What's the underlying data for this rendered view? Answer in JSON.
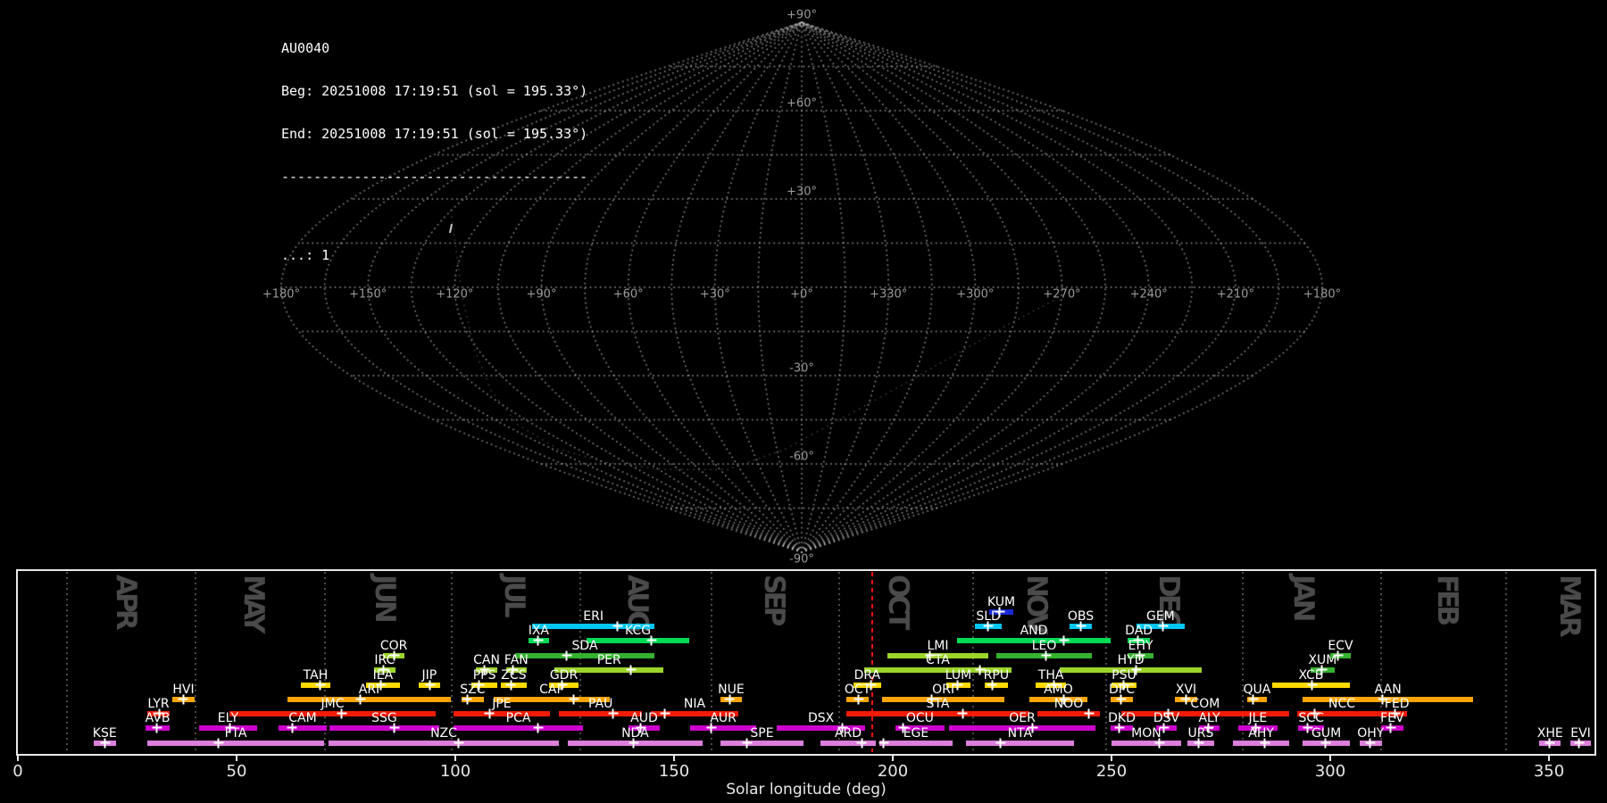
{
  "header": {
    "station": "AU0040",
    "beg_line": "Beg: 20251008 17:19:51 (sol = 195.33°)",
    "end_line": "End: 20251008 17:19:51 (sol = 195.33°)",
    "separator": "--------------------------------------",
    "count_line": "...: 1"
  },
  "palette": {
    "bl": "#1b2ad4",
    "cy": "#00c6f5",
    "sg": "#00db55",
    "gr": "#35b22f",
    "yg": "#9cd42a",
    "ye": "#ffd900",
    "or": "#ffa508",
    "re": "#f21b07",
    "ma": "#cc00cc",
    "vi": "#dc7edc"
  },
  "chart_data": [
    {
      "type": "scatter",
      "title": "radiant sky map, sinusoidal projection, sun-centered ecliptic coordinates",
      "grid": "dotted, parallels and meridians every 15 deg, labels every 30 deg",
      "lat_labels": [
        {
          "text": "+90°",
          "lat": 90
        },
        {
          "text": "+60°",
          "lat": 60
        },
        {
          "text": "+30°",
          "lat": 30
        },
        {
          "text": "-30°",
          "lat": -30
        },
        {
          "text": "-60°",
          "lat": -60
        },
        {
          "text": "-90°",
          "lat": -90
        }
      ],
      "lon_labels": [
        {
          "text": "+180°",
          "lon": 180
        },
        {
          "text": "+150°",
          "lon": 150
        },
        {
          "text": "+120°",
          "lon": 120
        },
        {
          "text": "+90°",
          "lon": 90
        },
        {
          "text": "+60°",
          "lon": 60
        },
        {
          "text": "+30°",
          "lon": 30
        },
        {
          "text": "+0°",
          "lon": 0
        },
        {
          "text": "+330°",
          "lon": -30
        },
        {
          "text": "+300°",
          "lon": -60
        },
        {
          "text": "+270°",
          "lon": -90
        },
        {
          "text": "+240°",
          "lon": -120
        },
        {
          "text": "+210°",
          "lon": -150
        },
        {
          "text": "+180°",
          "lon": -180
        }
      ],
      "radiant_count": 1,
      "radiant": {
        "lon": 129,
        "lat": 20
      },
      "reference_curve": [
        [
          134.9,
          25.9
        ],
        [
          119.3,
          6.1
        ],
        [
          117.4,
          -6.1
        ],
        [
          121.4,
          -21.4
        ],
        [
          131.3,
          -35.1
        ],
        [
          143.2,
          -46.7
        ],
        [
          146.7,
          -54.9
        ],
        [
          132.6,
          -59.5
        ],
        [
          100.3,
          -61.9
        ],
        [
          54.4,
          -61.9
        ],
        [
          9.7,
          -54.9
        ],
        [
          -20.2,
          -44.2
        ],
        [
          -41.4,
          -33.3
        ],
        [
          -57.6,
          -22.9
        ],
        [
          -73.4,
          -12.5
        ],
        [
          -88.8,
          -3.7
        ]
      ]
    },
    {
      "type": "bar",
      "title": "meteor shower activity periods",
      "xlabel": "Solar longitude (deg)",
      "xlim": [
        0,
        360.4
      ],
      "xticks": [
        0,
        50,
        100,
        150,
        200,
        250,
        300,
        350
      ],
      "current_sol": 195.33,
      "legend_position": "none",
      "grid": "dotted vertical lines at month boundaries",
      "months": [
        {
          "label": "APR",
          "start": 11.3,
          "center": 24.5
        },
        {
          "label": "MAY",
          "start": 40.6,
          "center": 53.7
        },
        {
          "label": "JUN",
          "start": 70.3,
          "center": 83.7
        },
        {
          "label": "JUL",
          "start": 99.2,
          "center": 113.3
        },
        {
          "label": "AUG",
          "start": 128.6,
          "center": 141.4
        },
        {
          "label": "SEP",
          "start": 158.6,
          "center": 172.7
        },
        {
          "label": "OCT",
          "start": 187.7,
          "center": 201.0
        },
        {
          "label": "NOV",
          "start": 218.3,
          "center": 232.7
        },
        {
          "label": "DEC",
          "start": 248.7,
          "center": 262.9
        },
        {
          "label": "JAN",
          "start": 280.0,
          "center": 293.7
        },
        {
          "label": "FEB",
          "start": 311.6,
          "center": 326.5
        },
        {
          "label": "MAR",
          "start": 340.2,
          "center": 354.5
        }
      ],
      "showers": [
        {
          "code": "KUM",
          "row": 0,
          "c": "bl",
          "start": 222.0,
          "end": 227.6,
          "peak": 224.5
        },
        {
          "code": "ERI",
          "row": 1,
          "c": "cy",
          "start": 117.6,
          "end": 145.5,
          "peak": 137.1
        },
        {
          "code": "SLD",
          "row": 1,
          "c": "cy",
          "start": 218.8,
          "end": 224.9,
          "peak": 221.8
        },
        {
          "code": "OBS",
          "row": 1,
          "c": "cy",
          "start": 240.4,
          "end": 245.5,
          "peak": 243.1
        },
        {
          "code": "GEM",
          "row": 1,
          "c": "cy",
          "start": 255.7,
          "end": 266.7,
          "peak": 261.8
        },
        {
          "code": "IXA",
          "row": 2,
          "c": "sg",
          "start": 116.7,
          "end": 121.4,
          "peak": 119.0
        },
        {
          "code": "KCG",
          "row": 2,
          "c": "sg",
          "start": 130.0,
          "end": 153.5,
          "peak": 144.9
        },
        {
          "code": "AND",
          "row": 2,
          "c": "sg",
          "start": 214.7,
          "end": 249.8,
          "peak": 239.2
        },
        {
          "code": "DAD",
          "row": 2,
          "c": "sg",
          "start": 253.7,
          "end": 258.8,
          "peak": 256.1
        },
        {
          "code": "COR",
          "row": 3,
          "c": "yg",
          "start": 83.5,
          "end": 88.4,
          "peak": 86.1
        },
        {
          "code": "SDA",
          "row": 3,
          "c": "gr",
          "start": 113.7,
          "end": 145.5,
          "peak": 125.5
        },
        {
          "code": "LMI",
          "row": 3,
          "c": "yg",
          "start": 198.8,
          "end": 221.8,
          "peak": 208.6
        },
        {
          "code": "LEO",
          "row": 3,
          "c": "gr",
          "start": 223.7,
          "end": 245.5,
          "peak": 235.1
        },
        {
          "code": "EHY",
          "row": 3,
          "c": "gr",
          "start": 253.7,
          "end": 259.6,
          "peak": 256.5
        },
        {
          "code": "ECV",
          "row": 3,
          "c": "gr",
          "start": 300.0,
          "end": 304.7,
          "peak": 301.8
        },
        {
          "code": "IRC",
          "row": 4,
          "c": "yg",
          "start": 81.4,
          "end": 86.3,
          "peak": 83.7
        },
        {
          "code": "CAN",
          "row": 4,
          "c": "yg",
          "start": 104.7,
          "end": 109.6,
          "peak": 106.7
        },
        {
          "code": "FAN",
          "row": 4,
          "c": "yg",
          "start": 111.6,
          "end": 116.3,
          "peak": 113.3
        },
        {
          "code": "PER",
          "row": 4,
          "c": "yg",
          "start": 122.7,
          "end": 147.6,
          "peak": 140.2
        },
        {
          "code": "CTA",
          "row": 4,
          "c": "yg",
          "start": 193.5,
          "end": 227.1,
          "peak": 220.0
        },
        {
          "code": "HYD",
          "row": 4,
          "c": "yg",
          "start": 238.2,
          "end": 270.6,
          "peak": 255.7
        },
        {
          "code": "XUM",
          "row": 4,
          "c": "gr",
          "start": 295.5,
          "end": 301.0,
          "peak": 298.2
        },
        {
          "code": "TAH",
          "row": 5,
          "c": "ye",
          "start": 64.7,
          "end": 71.4,
          "peak": 69.2
        },
        {
          "code": "IEA",
          "row": 5,
          "c": "ye",
          "start": 79.6,
          "end": 87.3,
          "peak": 83.1
        },
        {
          "code": "JIP",
          "row": 5,
          "c": "ye",
          "start": 91.6,
          "end": 96.5,
          "peak": 94.3
        },
        {
          "code": "PPS",
          "row": 5,
          "c": "ye",
          "start": 103.7,
          "end": 109.6,
          "peak": 105.5
        },
        {
          "code": "ZCS",
          "row": 5,
          "c": "ye",
          "start": 110.4,
          "end": 116.3,
          "peak": 112.7
        },
        {
          "code": "GDR",
          "row": 5,
          "c": "ye",
          "start": 121.4,
          "end": 128.2,
          "peak": 124.5
        },
        {
          "code": "DRA",
          "row": 5,
          "c": "ye",
          "start": 191.0,
          "end": 197.3,
          "peak": 195.1
        },
        {
          "code": "LUM",
          "row": 5,
          "c": "ye",
          "start": 212.2,
          "end": 217.8,
          "peak": 214.9
        },
        {
          "code": "RPU",
          "row": 5,
          "c": "ye",
          "start": 221.0,
          "end": 226.3,
          "peak": 222.7
        },
        {
          "code": "THA",
          "row": 5,
          "c": "ye",
          "start": 232.7,
          "end": 239.6,
          "peak": 236.9
        },
        {
          "code": "PSU",
          "row": 5,
          "c": "ye",
          "start": 250.0,
          "end": 255.7,
          "peak": 252.7
        },
        {
          "code": "XCB",
          "row": 5,
          "c": "ye",
          "start": 286.7,
          "end": 304.5,
          "peak": 295.9
        },
        {
          "code": "HVI",
          "row": 6,
          "c": "or",
          "start": 35.3,
          "end": 40.4,
          "peak": 37.8
        },
        {
          "code": "ARI",
          "row": 6,
          "c": "or",
          "start": 61.6,
          "end": 99.0,
          "peak": 78.4
        },
        {
          "code": "SZC",
          "row": 6,
          "c": "or",
          "start": 101.4,
          "end": 106.5,
          "peak": 102.7
        },
        {
          "code": "CAP",
          "row": 6,
          "c": "or",
          "start": 108.8,
          "end": 135.3,
          "peak": 127.1
        },
        {
          "code": "NUE",
          "row": 6,
          "c": "or",
          "start": 160.6,
          "end": 165.5,
          "peak": 162.7
        },
        {
          "code": "OCT",
          "row": 6,
          "c": "or",
          "start": 189.4,
          "end": 194.5,
          "peak": 192.2
        },
        {
          "code": "ORI",
          "row": 6,
          "c": "or",
          "start": 197.6,
          "end": 225.5,
          "peak": 209.0
        },
        {
          "code": "AMO",
          "row": 6,
          "c": "or",
          "start": 231.2,
          "end": 244.5,
          "peak": 239.2
        },
        {
          "code": "DPC",
          "row": 6,
          "c": "or",
          "start": 249.8,
          "end": 254.9,
          "peak": 252.2
        },
        {
          "code": "XVI",
          "row": 6,
          "c": "or",
          "start": 264.5,
          "end": 269.6,
          "peak": 267.0
        },
        {
          "code": "QUA",
          "row": 6,
          "c": "or",
          "start": 281.0,
          "end": 285.5,
          "peak": 282.4
        },
        {
          "code": "AAN",
          "row": 6,
          "c": "or",
          "start": 293.7,
          "end": 332.7,
          "peak": 312.0
        },
        {
          "code": "LYR",
          "row": 7,
          "c": "re",
          "start": 29.6,
          "end": 34.7,
          "peak": 32.4
        },
        {
          "code": "JMC",
          "row": 7,
          "c": "re",
          "start": 48.4,
          "end": 95.5,
          "peak": 74.1
        },
        {
          "code": "JPE",
          "row": 7,
          "c": "re",
          "start": 99.6,
          "end": 121.6,
          "peak": 107.8
        },
        {
          "code": "PAU",
          "row": 7,
          "c": "re",
          "start": 123.7,
          "end": 142.7,
          "peak": 136.1
        },
        {
          "code": "NIA",
          "row": 7,
          "c": "re",
          "start": 144.7,
          "end": 164.7,
          "peak": 148.0
        },
        {
          "code": "STA",
          "row": 7,
          "c": "re",
          "start": 189.4,
          "end": 231.2,
          "peak": 216.0
        },
        {
          "code": "NOO",
          "row": 7,
          "c": "re",
          "start": 233.1,
          "end": 247.3,
          "peak": 244.9
        },
        {
          "code": "COM",
          "row": 7,
          "c": "re",
          "start": 252.2,
          "end": 290.6,
          "peak": 263.1
        },
        {
          "code": "NCC",
          "row": 7,
          "c": "re",
          "start": 292.4,
          "end": 312.9,
          "peak": 296.5
        },
        {
          "code": "FED",
          "row": 7,
          "c": "re",
          "start": 312.9,
          "end": 317.6,
          "peak": 314.9
        },
        {
          "code": "AVB",
          "row": 8,
          "c": "ma",
          "start": 29.2,
          "end": 34.7,
          "peak": 31.8
        },
        {
          "code": "ELY",
          "row": 8,
          "c": "ma",
          "start": 41.4,
          "end": 54.7,
          "peak": 48.6
        },
        {
          "code": "CAM",
          "row": 8,
          "c": "ma",
          "start": 59.6,
          "end": 70.6,
          "peak": 62.7
        },
        {
          "code": "SSG",
          "row": 8,
          "c": "ma",
          "start": 71.2,
          "end": 96.3,
          "peak": 86.1
        },
        {
          "code": "PCA",
          "row": 8,
          "c": "ma",
          "start": 99.6,
          "end": 129.2,
          "peak": 119.0
        },
        {
          "code": "AUD",
          "row": 8,
          "c": "ma",
          "start": 139.6,
          "end": 146.7,
          "peak": 142.4
        },
        {
          "code": "AUR",
          "row": 8,
          "c": "ma",
          "start": 153.7,
          "end": 168.8,
          "peak": 158.6
        },
        {
          "code": "DSX",
          "row": 8,
          "c": "ma",
          "start": 173.5,
          "end": 193.7,
          "peak": 188.6
        },
        {
          "code": "OCU",
          "row": 8,
          "c": "ma",
          "start": 200.6,
          "end": 211.8,
          "peak": 202.4
        },
        {
          "code": "OER",
          "row": 8,
          "c": "ma",
          "start": 212.9,
          "end": 246.3,
          "peak": 232.0
        },
        {
          "code": "DKD",
          "row": 8,
          "c": "ma",
          "start": 249.8,
          "end": 254.9,
          "peak": 251.8
        },
        {
          "code": "DSV",
          "row": 8,
          "c": "ma",
          "start": 260.2,
          "end": 264.9,
          "peak": 262.0
        },
        {
          "code": "ALY",
          "row": 8,
          "c": "ma",
          "start": 270.0,
          "end": 274.7,
          "peak": 272.2
        },
        {
          "code": "JLE",
          "row": 8,
          "c": "ma",
          "start": 279.0,
          "end": 287.9,
          "peak": 283.1
        },
        {
          "code": "SCC",
          "row": 8,
          "c": "ma",
          "start": 292.7,
          "end": 298.6,
          "peak": 294.9
        },
        {
          "code": "FEV",
          "row": 8,
          "c": "ma",
          "start": 311.6,
          "end": 316.7,
          "peak": 313.9
        },
        {
          "code": "KSE",
          "row": 9,
          "c": "vi",
          "start": 17.3,
          "end": 22.4,
          "peak": 20.0
        },
        {
          "code": "FTA",
          "row": 9,
          "c": "vi",
          "start": 29.6,
          "end": 70.0,
          "peak": 45.9
        },
        {
          "code": "NZC",
          "row": 9,
          "c": "vi",
          "start": 71.0,
          "end": 123.7,
          "peak": 100.8
        },
        {
          "code": "NDA",
          "row": 9,
          "c": "vi",
          "start": 125.7,
          "end": 156.5,
          "peak": 140.8
        },
        {
          "code": "SPE",
          "row": 9,
          "c": "vi",
          "start": 160.6,
          "end": 179.6,
          "peak": 166.7
        },
        {
          "code": "ARD",
          "row": 9,
          "c": "vi",
          "start": 183.5,
          "end": 196.1,
          "peak": 192.9
        },
        {
          "code": "EGE",
          "row": 9,
          "c": "vi",
          "start": 196.9,
          "end": 213.7,
          "peak": 198.0
        },
        {
          "code": "NTA",
          "row": 9,
          "c": "vi",
          "start": 216.7,
          "end": 241.4,
          "peak": 224.7
        },
        {
          "code": "MON",
          "row": 9,
          "c": "vi",
          "start": 250.0,
          "end": 265.9,
          "peak": 261.0
        },
        {
          "code": "URS",
          "row": 9,
          "c": "vi",
          "start": 267.3,
          "end": 273.5,
          "peak": 270.0
        },
        {
          "code": "AHY",
          "row": 9,
          "c": "vi",
          "start": 277.8,
          "end": 290.6,
          "peak": 285.1
        },
        {
          "code": "GUM",
          "row": 9,
          "c": "vi",
          "start": 293.7,
          "end": 304.5,
          "peak": 299.0
        },
        {
          "code": "OHY",
          "row": 9,
          "c": "vi",
          "start": 306.7,
          "end": 311.8,
          "peak": 309.2
        },
        {
          "code": "XHE",
          "row": 9,
          "c": "vi",
          "start": 347.8,
          "end": 352.7,
          "peak": 350.2
        },
        {
          "code": "EVI",
          "row": 9,
          "c": "vi",
          "start": 354.9,
          "end": 359.6,
          "peak": 356.9
        }
      ]
    }
  ]
}
